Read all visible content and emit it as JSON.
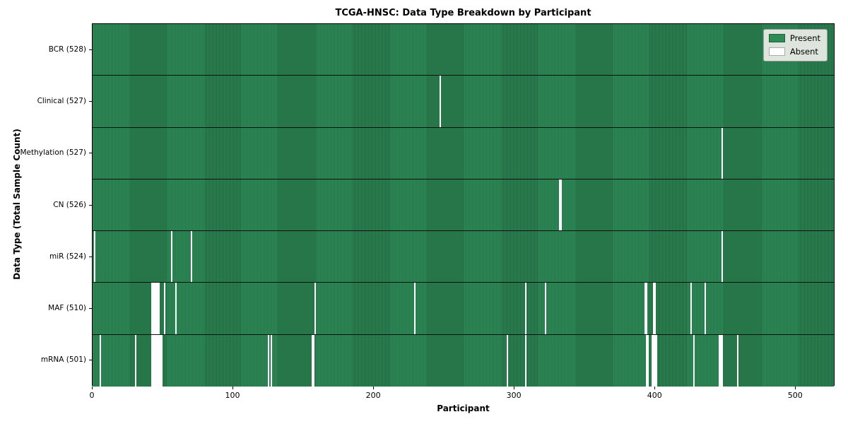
{
  "chart_data": {
    "type": "heatmap",
    "title": "TCGA-HNSC: Data Type Breakdown by Participant",
    "xlabel": "Participant",
    "ylabel": "Data Type (Total Sample Count)",
    "x_ticks": [
      0,
      100,
      200,
      300,
      400,
      500
    ],
    "xlim": [
      0,
      528
    ],
    "total_participants": 528,
    "colors": {
      "present_fill": "#2e8b57",
      "present_edge": "#20613e",
      "absent_fill": "#fdfdfd",
      "row_separator": "#111111",
      "legend_bg": "#dde5dd"
    },
    "legend_items": [
      {
        "label": "Present",
        "color": "#2e8b57",
        "edge": "#20613e"
      },
      {
        "label": "Absent",
        "color": "#ffffff",
        "edge": "#aaaaaa"
      }
    ],
    "rows": [
      {
        "label": "BCR (528)",
        "present_count": 528,
        "absent_participants": []
      },
      {
        "label": "Clinical (527)",
        "present_count": 527,
        "absent_participants": [
          247
        ]
      },
      {
        "label": "Methylation (527)",
        "present_count": 527,
        "absent_participants": [
          448
        ]
      },
      {
        "label": "CN (526)",
        "present_count": 526,
        "absent_participants": [
          332,
          333
        ]
      },
      {
        "label": "miR (524)",
        "present_count": 524,
        "absent_participants": [
          1,
          56,
          70,
          448
        ]
      },
      {
        "label": "MAF (510)",
        "present_count": 510,
        "absent_participants": [
          42,
          43,
          44,
          45,
          46,
          47,
          51,
          59,
          158,
          229,
          308,
          322,
          393,
          394,
          399,
          400,
          426,
          436
        ]
      },
      {
        "label": "mRNA (501)",
        "present_count": 501,
        "absent_participants": [
          5,
          30,
          42,
          43,
          44,
          45,
          46,
          47,
          48,
          49,
          125,
          127,
          156,
          157,
          295,
          308,
          394,
          395,
          398,
          399,
          400,
          401,
          428,
          446,
          447,
          448,
          459
        ]
      }
    ]
  }
}
